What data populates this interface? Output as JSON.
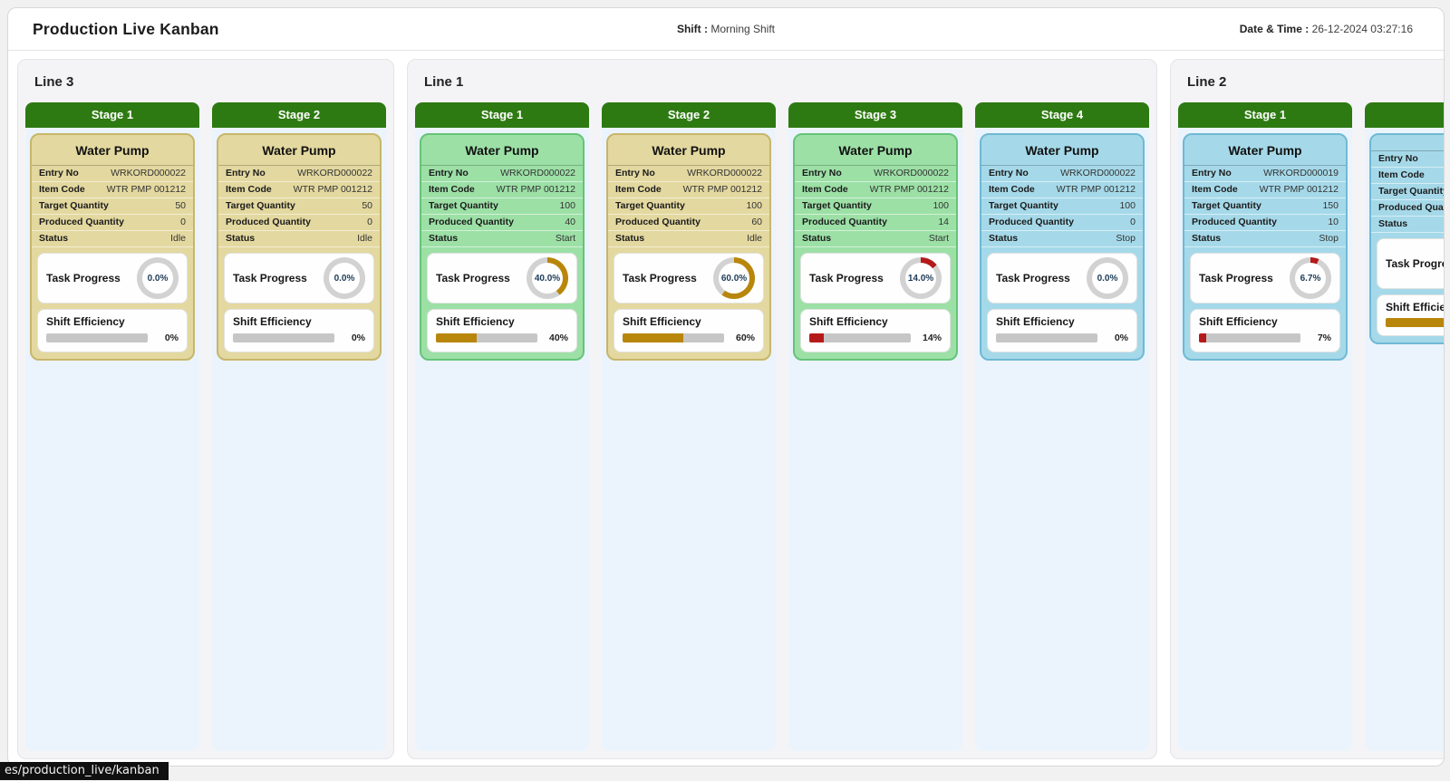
{
  "header": {
    "title": "Production Live Kanban",
    "shift_label": "Shift :",
    "shift_value": "Morning Shift",
    "datetime_label": "Date & Time :",
    "datetime_value": "26-12-2024 03:27:16"
  },
  "labels": {
    "entry_no": "Entry No",
    "item_code": "Item Code",
    "target_qty": "Target Quantity",
    "produced_qty": "Produced Quantity",
    "status": "Status",
    "task_progress": "Task Progress",
    "shift_efficiency": "Shift Efficiency"
  },
  "colors": {
    "stage_header_green": "#2e7a12",
    "gold": "#b8860b",
    "red": "#b51a1a",
    "gray": "#d2d2d2",
    "bar_track": "#c6c6c6",
    "column_bg": "#ebf4fc"
  },
  "themes": {
    "idle": {
      "bg": "#e3d89f",
      "border": "#c7b66b"
    },
    "start": {
      "bg": "#9ce0a6",
      "border": "#66c379"
    },
    "stop": {
      "bg": "#a5d9e9",
      "border": "#6fb9d4"
    }
  },
  "statusbar": {
    "text": "es/production_live/kanban"
  },
  "lanes": [
    {
      "name": "Line 3",
      "stages": [
        {
          "name": "Stage 1",
          "card": {
            "title": "Water Pump",
            "entry_no": "WRKORD000022",
            "item_code": "WTR PMP 001212",
            "target_qty": "50",
            "produced_qty": "0",
            "status": "Idle",
            "theme": "idle",
            "task_pct": 0,
            "task_color": "gray",
            "task_text": "0.0%",
            "shift_pct": 0,
            "shift_color": "gray",
            "shift_text": "0%"
          }
        },
        {
          "name": "Stage 2",
          "card": {
            "title": "Water Pump",
            "entry_no": "WRKORD000022",
            "item_code": "WTR PMP 001212",
            "target_qty": "50",
            "produced_qty": "0",
            "status": "Idle",
            "theme": "idle",
            "task_pct": 0,
            "task_color": "gray",
            "task_text": "0.0%",
            "shift_pct": 0,
            "shift_color": "gray",
            "shift_text": "0%"
          }
        }
      ]
    },
    {
      "name": "Line 1",
      "stages": [
        {
          "name": "Stage 1",
          "card": {
            "title": "Water Pump",
            "entry_no": "WRKORD000022",
            "item_code": "WTR PMP 001212",
            "target_qty": "100",
            "produced_qty": "40",
            "status": "Start",
            "theme": "start",
            "task_pct": 40,
            "task_color": "gold",
            "task_text": "40.0%",
            "shift_pct": 40,
            "shift_color": "gold",
            "shift_text": "40%"
          }
        },
        {
          "name": "Stage 2",
          "card": {
            "title": "Water Pump",
            "entry_no": "WRKORD000022",
            "item_code": "WTR PMP 001212",
            "target_qty": "100",
            "produced_qty": "60",
            "status": "Idle",
            "theme": "idle",
            "task_pct": 60,
            "task_color": "gold",
            "task_text": "60.0%",
            "shift_pct": 60,
            "shift_color": "gold",
            "shift_text": "60%"
          }
        },
        {
          "name": "Stage 3",
          "card": {
            "title": "Water Pump",
            "entry_no": "WRKORD000022",
            "item_code": "WTR PMP 001212",
            "target_qty": "100",
            "produced_qty": "14",
            "status": "Start",
            "theme": "start",
            "task_pct": 14,
            "task_color": "red",
            "task_text": "14.0%",
            "shift_pct": 14,
            "shift_color": "red",
            "shift_text": "14%"
          }
        },
        {
          "name": "Stage 4",
          "card": {
            "title": "Water Pump",
            "entry_no": "WRKORD000022",
            "item_code": "WTR PMP 001212",
            "target_qty": "100",
            "produced_qty": "0",
            "status": "Stop",
            "theme": "stop",
            "task_pct": 0,
            "task_color": "gray",
            "task_text": "0.0%",
            "shift_pct": 0,
            "shift_color": "gray",
            "shift_text": "0%"
          }
        }
      ]
    },
    {
      "name": "Line 2",
      "stages": [
        {
          "name": "Stage 1",
          "card": {
            "title": "Water Pump",
            "entry_no": "WRKORD000019",
            "item_code": "WTR PMP 001212",
            "target_qty": "150",
            "produced_qty": "10",
            "status": "Stop",
            "theme": "stop",
            "task_pct": 6.7,
            "task_color": "red",
            "task_text": "6.7%",
            "shift_pct": 7,
            "shift_color": "red",
            "shift_text": "7%"
          }
        },
        {
          "name": "",
          "card": {
            "title": "",
            "entry_no": "",
            "item_code": "",
            "target_qty": "",
            "produced_qty": "",
            "status": "",
            "theme": "stop",
            "task_pct": 0,
            "task_color": "gray",
            "task_text": "",
            "shift_pct": 60,
            "shift_color": "gold",
            "shift_text": ""
          }
        }
      ]
    }
  ]
}
